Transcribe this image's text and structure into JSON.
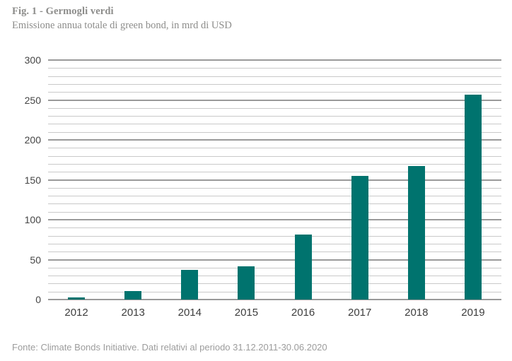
{
  "header": {
    "title": "Fig. 1 - Germogli verdi",
    "subtitle": "Emissione annua totale di green bond, in mrd di USD"
  },
  "footer": {
    "source": "Fonte: Climate Bonds Initiative. Dati relativi al periodo 31.12.2011-30.06.2020"
  },
  "colors": {
    "bar": "#00736e",
    "grid_major": "#9a9a9a",
    "grid_minor": "#c9c9c9",
    "header_text": "#8d8d8b",
    "axis_text": "#3d3d3d",
    "footer_text": "#9c9c9c",
    "background": "#ffffff"
  },
  "chart_data": {
    "type": "bar",
    "title": "Fig. 1 - Germogli verdi",
    "subtitle": "Emissione annua totale di green bond, in mrd di USD",
    "categories": [
      "2012",
      "2013",
      "2014",
      "2015",
      "2016",
      "2017",
      "2018",
      "2019"
    ],
    "values": [
      3,
      11,
      37,
      42,
      81,
      155,
      167,
      257
    ],
    "xlabel": "",
    "ylabel": "",
    "unit": "mrd di USD",
    "ylim": [
      0,
      300
    ],
    "ytick_labels": [
      "0",
      "50",
      "100",
      "150",
      "200",
      "250",
      "300"
    ],
    "ytick_major_step": 50,
    "ytick_minor_step": 10,
    "grid": "horizontal",
    "legend": "none",
    "bar_color": "#00736e"
  }
}
